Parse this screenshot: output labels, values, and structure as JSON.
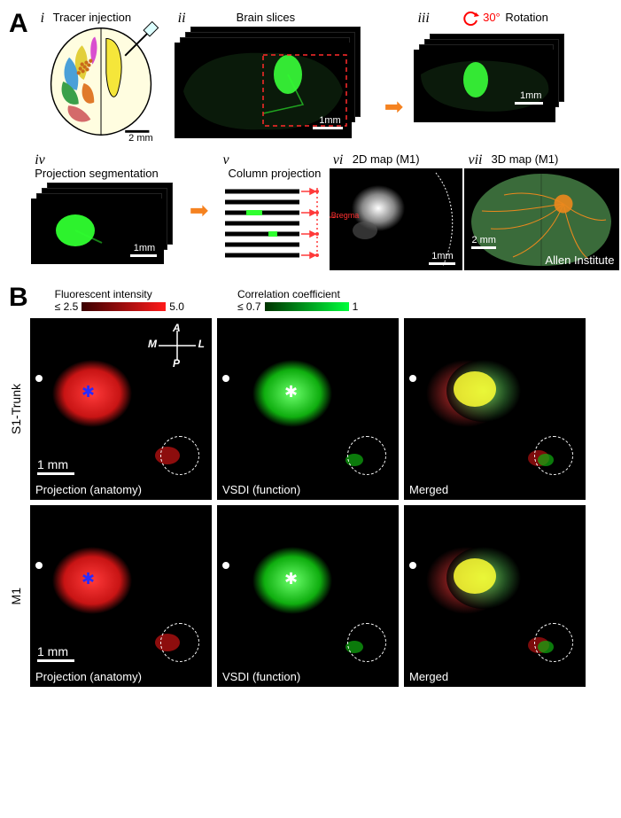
{
  "figure": {
    "panelA": {
      "letter": "A",
      "sub": {
        "i": {
          "roman": "i",
          "label": "Tracer injection",
          "scalebar": "2 mm"
        },
        "ii": {
          "roman": "ii",
          "label": "Brain slices",
          "scalebar": "1mm"
        },
        "iii": {
          "roman": "iii",
          "label": "Rotation",
          "angle": "30°",
          "scalebar": "1mm"
        },
        "iv": {
          "roman": "iv",
          "label": "Projection segmentation",
          "scalebar": "1mm"
        },
        "v": {
          "roman": "v",
          "label": "Column projection"
        },
        "vi": {
          "roman": "vi",
          "label": "2D map (M1)",
          "marker": "Bregma",
          "scalebar": "1mm"
        },
        "vii": {
          "roman": "vii",
          "label": "3D map (M1)",
          "credit": "Allen Institute",
          "scalebar": "2 mm"
        }
      }
    },
    "panelB": {
      "letter": "B",
      "colorbars": {
        "fluorescent": {
          "title": "Fluorescent intensity",
          "min": "≤ 2.5",
          "max": "5.0",
          "gradient_from": "#3a0000",
          "gradient_to": "#ff1a1a"
        },
        "correlation": {
          "title": "Correlation coefficient",
          "min": "≤ 0.7",
          "max": "1",
          "gradient_from": "#003300",
          "gradient_to": "#00ff3c"
        }
      },
      "compass": {
        "A": "A",
        "P": "P",
        "M": "M",
        "L": "L"
      },
      "rows": [
        {
          "name": "S1-Trunk",
          "cells": [
            {
              "caption": "Projection (anatomy)",
              "scalebar": "1 mm",
              "kind": "red"
            },
            {
              "caption": "VSDI (function)",
              "kind": "green"
            },
            {
              "caption": "Merged",
              "kind": "merged"
            }
          ]
        },
        {
          "name": "M1",
          "cells": [
            {
              "caption": "Projection (anatomy)",
              "scalebar": "1 mm",
              "kind": "red"
            },
            {
              "caption": "VSDI (function)",
              "kind": "green"
            },
            {
              "caption": "Merged",
              "kind": "merged"
            }
          ]
        }
      ]
    }
  },
  "colors": {
    "orange_arrow": "#f58220",
    "rotation_red": "#ff0000",
    "bregma_red": "#ff3030",
    "green_signal": "#2fff2f",
    "red_signal": "#ff2020",
    "yellow_overlap": "#ffff33",
    "brain_green": "#3a6b3a",
    "allen_orange": "#ff8c1a"
  }
}
